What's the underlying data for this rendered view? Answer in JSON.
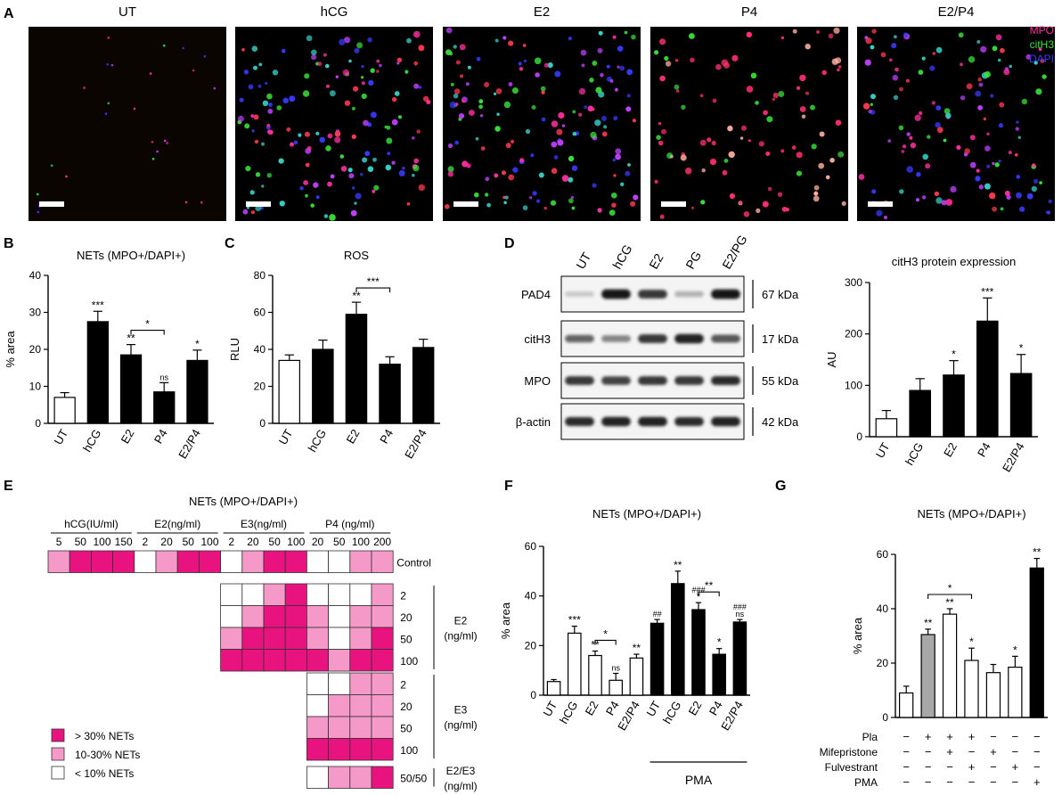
{
  "panel_letters": [
    "A",
    "B",
    "C",
    "D",
    "E",
    "F",
    "G"
  ],
  "micro": {
    "titles": [
      "UT",
      "hCG",
      "E2",
      "P4",
      "E2/P4"
    ],
    "legend": [
      {
        "text": "MPO",
        "color": "#ff2fa0"
      },
      {
        "text": "citH3",
        "color": "#39e23a"
      },
      {
        "text": "DAPI",
        "color": "#3a3aff"
      }
    ]
  },
  "colors": {
    "bar_black": "#000000",
    "bar_white": "#ffffff",
    "bar_gray": "#a8a8a8",
    "hi": "#e8137f",
    "mid": "#f59ac8",
    "lo": "#ffffff"
  },
  "chart_data": [
    {
      "id": "B",
      "type": "bar",
      "title": "NETs (MPO+/DAPI+)",
      "ylabel": "% area",
      "ylim": [
        0,
        40
      ],
      "yticks": [
        "0",
        "10",
        "20",
        "30",
        "40"
      ],
      "categories": [
        "UT",
        "hCG",
        "E2",
        "P4",
        "E2/P4"
      ],
      "values": [
        7,
        27.5,
        18.5,
        8.5,
        17
      ],
      "errors": [
        1.3,
        2.8,
        2.8,
        2.5,
        2.8
      ],
      "fills": [
        "white",
        "black",
        "black",
        "black",
        "black"
      ],
      "sig": [
        "",
        "***",
        "**",
        "ns",
        "*"
      ],
      "brackets": [
        {
          "from": 2,
          "to": 3,
          "label": "*"
        }
      ]
    },
    {
      "id": "C",
      "type": "bar",
      "title": "ROS",
      "ylabel": "RLU",
      "ylim": [
        0,
        80
      ],
      "yticks": [
        "0",
        "20",
        "40",
        "60",
        "80"
      ],
      "categories": [
        "UT",
        "hCG",
        "E2",
        "P4",
        "E2/P4"
      ],
      "values": [
        34,
        40,
        59,
        32,
        41
      ],
      "errors": [
        3,
        5,
        6.5,
        4,
        4.5
      ],
      "fills": [
        "white",
        "black",
        "black",
        "black",
        "black"
      ],
      "sig": [
        "",
        "",
        "**",
        "",
        ""
      ],
      "brackets": [
        {
          "from": 2,
          "to": 3,
          "label": "***"
        }
      ]
    },
    {
      "id": "D",
      "type": "bar",
      "title": "citH3 protein expression",
      "ylabel": "AU",
      "ylim": [
        0,
        300
      ],
      "yticks": [
        "0",
        "100",
        "200",
        "300"
      ],
      "categories": [
        "UT",
        "hCG",
        "E2",
        "P4",
        "E2/P4"
      ],
      "values": [
        35,
        90,
        120,
        225,
        123
      ],
      "errors": [
        16,
        23,
        28,
        45,
        37
      ],
      "fills": [
        "white",
        "black",
        "black",
        "black",
        "black"
      ],
      "sig": [
        "",
        "",
        "*",
        "***",
        "*"
      ],
      "brackets": []
    },
    {
      "id": "F",
      "type": "bar",
      "title": "NETs (MPO+/DAPI+)",
      "ylabel": "% area",
      "ylim": [
        0,
        60
      ],
      "yticks": [
        "0",
        "20",
        "40",
        "60"
      ],
      "categories": [
        "UT",
        "hCG",
        "E2",
        "P4",
        "E2/P4",
        "UT",
        "hCG",
        "E2",
        "P4",
        "E2/P4"
      ],
      "values": [
        5.5,
        25,
        16,
        6,
        15,
        29,
        45,
        34.5,
        16.5,
        29.5
      ],
      "errors": [
        0.8,
        2.8,
        1.8,
        2.8,
        1.5,
        1.5,
        5,
        2.8,
        2.3,
        1
      ],
      "fills": [
        "white",
        "white",
        "white",
        "white",
        "white",
        "black",
        "black",
        "black",
        "black",
        "black"
      ],
      "sig": [
        "",
        "***",
        "**",
        "ns",
        "**",
        "##",
        "**",
        "###\n*",
        "*",
        "###\nns"
      ],
      "brackets": [
        {
          "from": 2,
          "to": 3,
          "label": "*"
        },
        {
          "from": 7,
          "to": 8,
          "label": "**"
        }
      ],
      "group_label": "PMA"
    },
    {
      "id": "G",
      "type": "bar",
      "title": "NETs (MPO+/DAPI+)",
      "ylabel": "% area",
      "ylim": [
        0,
        60
      ],
      "yticks": [
        "0",
        "20",
        "40",
        "60"
      ],
      "values": [
        9,
        30.5,
        38,
        21,
        16.5,
        18.5,
        55
      ],
      "errors": [
        2.5,
        2,
        2,
        4.5,
        3,
        4,
        3.5
      ],
      "fills": [
        "white",
        "gray",
        "white",
        "white",
        "white",
        "white",
        "black"
      ],
      "sig": [
        "",
        "**",
        "**",
        "*",
        "",
        "*",
        "**"
      ],
      "brackets": [
        {
          "from": 1,
          "to": 3,
          "label": "*"
        }
      ],
      "rows": [
        {
          "label": "Pla",
          "marks": [
            "−",
            "+",
            "+",
            "+",
            "−",
            "−",
            "−"
          ]
        },
        {
          "label": "Mifepristone",
          "marks": [
            "−",
            "−",
            "+",
            "−",
            "+",
            "−",
            "−"
          ]
        },
        {
          "label": "Fulvestrant",
          "marks": [
            "−",
            "−",
            "−",
            "+",
            "−",
            "+",
            "−"
          ]
        },
        {
          "label": "PMA",
          "marks": [
            "−",
            "−",
            "−",
            "−",
            "−",
            "−",
            "+"
          ]
        }
      ]
    },
    {
      "id": "E",
      "type": "heatmap",
      "title": "NETs (MPO+/DAPI+)",
      "column_groups": [
        {
          "label": "hCG(IU/ml)",
          "ticks": [
            "5",
            "50",
            "100",
            "150"
          ]
        },
        {
          "label": "E2(ng/ml)",
          "ticks": [
            "2",
            "20",
            "50",
            "100"
          ]
        },
        {
          "label": "E3(ng/ml)",
          "ticks": [
            "2",
            "20",
            "50",
            "100"
          ]
        },
        {
          "label": "P4 (ng/ml)",
          "ticks": [
            "20",
            "50",
            "100",
            "200"
          ]
        }
      ],
      "control_label": "Control",
      "control": [
        "m",
        "h",
        "h",
        "h",
        "w",
        "m",
        "h",
        "h",
        "w",
        "m",
        "h",
        "h",
        "w",
        "w",
        "m",
        "m"
      ],
      "blocks": [
        {
          "label": "E2\n(ng/ml)",
          "row_labels": [
            "2",
            "20",
            "50",
            "100"
          ],
          "rows": [
            [
              "w",
              "w",
              "m",
              "h",
              "w",
              "w",
              "w",
              "m"
            ],
            [
              "w",
              "m",
              "h",
              "h",
              "m",
              "w",
              "m",
              "m"
            ],
            [
              "m",
              "h",
              "h",
              "h",
              "m",
              "w",
              "m",
              "h"
            ],
            [
              "h",
              "h",
              "h",
              "h",
              "h",
              "m",
              "h",
              "h"
            ]
          ]
        },
        {
          "label": "E3\n(ng/ml)",
          "row_labels": [
            "2",
            "20",
            "50",
            "100"
          ],
          "rows": [
            [
              "w",
              "w",
              "m",
              "m"
            ],
            [
              "w",
              "m",
              "m",
              "m"
            ],
            [
              "m",
              "m",
              "m",
              "m"
            ],
            [
              "h",
              "h",
              "h",
              "h"
            ]
          ]
        },
        {
          "label": "E2/E3\n(ng/ml)",
          "row_labels": [
            "50/50"
          ],
          "rows": [
            [
              "w",
              "m",
              "m",
              "h"
            ]
          ]
        }
      ],
      "legend": [
        {
          "code": "h",
          "text": "> 30% NETs"
        },
        {
          "code": "m",
          "text": "10-30% NETs"
        },
        {
          "code": "w",
          "text": "< 10% NETs"
        }
      ]
    }
  ],
  "western": {
    "lanes": [
      "UT",
      "hCG",
      "E2",
      "PG",
      "E2/PG"
    ],
    "rows": [
      {
        "label": "PAD4",
        "size": "67  kDa",
        "intensity": [
          0.15,
          0.95,
          0.8,
          0.25,
          0.95
        ]
      },
      {
        "label": "citH3",
        "size": "17  kDa",
        "intensity": [
          0.6,
          0.45,
          0.8,
          0.9,
          0.65
        ]
      },
      {
        "label": "MPO",
        "size": "55  kDa",
        "intensity": [
          0.8,
          0.75,
          0.8,
          0.8,
          0.85
        ]
      },
      {
        "label": "β-actin",
        "size": "42  kDa",
        "intensity": [
          0.85,
          0.9,
          0.9,
          0.85,
          0.9
        ]
      }
    ]
  }
}
